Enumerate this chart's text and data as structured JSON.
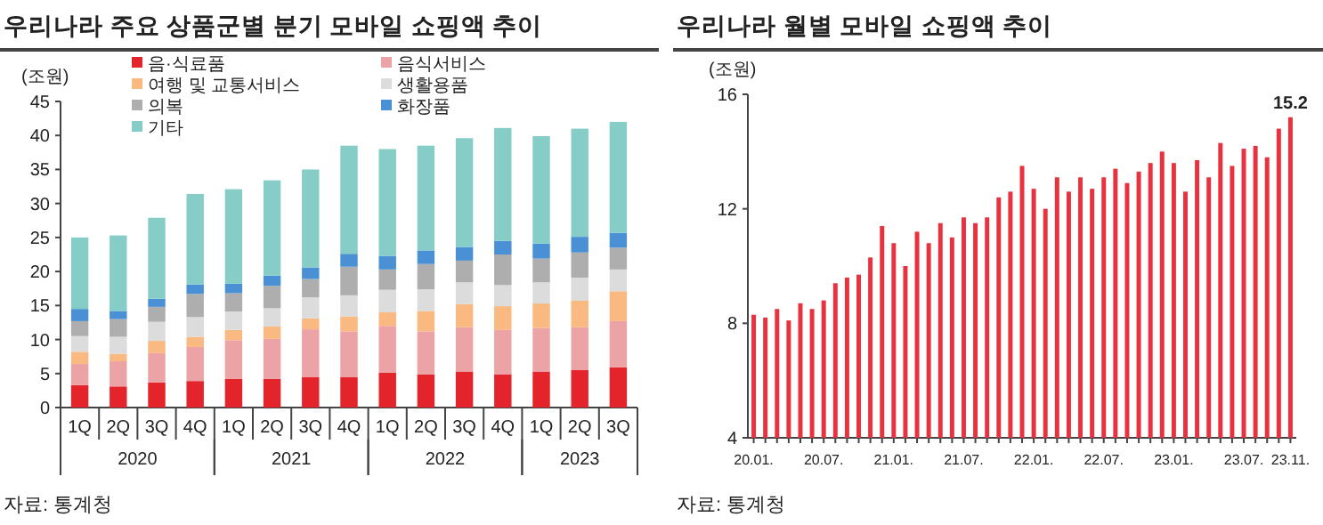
{
  "chart_data": [
    {
      "type": "bar",
      "stacked": true,
      "title": "우리나라 주요 상품군별 분기 모바일 쇼핑액 추이",
      "ylabel": "(조원)",
      "categories": [
        "1Q",
        "2Q",
        "3Q",
        "4Q",
        "1Q",
        "2Q",
        "3Q",
        "4Q",
        "1Q",
        "2Q",
        "3Q",
        "4Q",
        "1Q",
        "2Q",
        "3Q"
      ],
      "series": [
        {
          "name": "음·식료품",
          "color": "#e3242b",
          "values": [
            3.3,
            3.1,
            3.7,
            3.9,
            4.2,
            4.2,
            4.5,
            4.5,
            5.1,
            4.9,
            5.3,
            4.9,
            5.3,
            5.5,
            5.9
          ]
        },
        {
          "name": "음식서비스",
          "color": "#eba3a6",
          "values": [
            3.1,
            3.7,
            4.3,
            5.0,
            5.7,
            5.9,
            7.0,
            6.7,
            6.9,
            6.3,
            6.5,
            6.5,
            6.4,
            6.3,
            6.8
          ]
        },
        {
          "name": "여행 및 교통서비스",
          "color": "#f9b981",
          "values": [
            1.8,
            1.1,
            1.8,
            1.5,
            1.5,
            1.8,
            1.6,
            2.2,
            2.0,
            3.0,
            3.4,
            3.5,
            3.6,
            3.9,
            4.4
          ]
        },
        {
          "name": "생활용품",
          "color": "#dcdcdc",
          "values": [
            2.3,
            2.5,
            2.8,
            2.9,
            2.7,
            2.7,
            3.1,
            3.1,
            3.3,
            3.2,
            3.2,
            3.1,
            3.1,
            3.4,
            3.2
          ]
        },
        {
          "name": "의복",
          "color": "#aeaeae",
          "values": [
            2.2,
            2.6,
            2.2,
            3.4,
            2.7,
            3.3,
            2.7,
            4.2,
            3.0,
            3.7,
            3.2,
            4.5,
            3.5,
            3.7,
            3.2
          ]
        },
        {
          "name": "화장품",
          "color": "#4a90d4",
          "values": [
            1.8,
            1.2,
            1.2,
            1.4,
            1.4,
            1.5,
            1.7,
            1.9,
            2.0,
            2.0,
            2.0,
            2.0,
            2.2,
            2.3,
            2.2
          ]
        },
        {
          "name": "기타",
          "color": "#86cdc8",
          "values": [
            10.5,
            11.1,
            11.9,
            13.3,
            13.9,
            14.0,
            14.4,
            15.9,
            15.7,
            15.4,
            16.0,
            16.6,
            15.8,
            15.9,
            16.3
          ]
        }
      ],
      "ylim": [
        0,
        45
      ],
      "yticks": [
        0,
        5,
        10,
        15,
        20,
        25,
        30,
        35,
        40,
        45
      ],
      "legend": "top left",
      "grid": false,
      "annotations": [
        {
          "text": "2020"
        },
        {
          "text": "2021"
        },
        {
          "text": "2022"
        },
        {
          "text": "2023"
        },
        "자료: 통계청"
      ]
    },
    {
      "type": "bar",
      "title": "우리나라 월별 모바일 쇼핑액 추이",
      "ylabel": "(조원)",
      "color": "#e8323f",
      "categories": [
        "20.01.",
        null,
        null,
        null,
        null,
        null,
        "20.07.",
        null,
        null,
        null,
        null,
        null,
        "21.01.",
        null,
        null,
        null,
        null,
        null,
        "21.07.",
        null,
        null,
        null,
        null,
        null,
        "22.01.",
        null,
        null,
        null,
        null,
        null,
        "22.07.",
        null,
        null,
        null,
        null,
        null,
        "23.01.",
        null,
        null,
        null,
        null,
        null,
        "23.07.",
        null,
        null,
        null,
        "23.11."
      ],
      "values": [
        8.3,
        8.2,
        8.5,
        8.1,
        8.7,
        8.5,
        8.8,
        9.4,
        9.6,
        9.7,
        10.3,
        11.4,
        10.8,
        10.0,
        11.2,
        10.8,
        11.5,
        11.0,
        11.7,
        11.5,
        11.7,
        12.4,
        12.6,
        13.5,
        12.7,
        12.0,
        13.1,
        12.6,
        13.1,
        12.7,
        13.1,
        13.4,
        12.9,
        13.3,
        13.6,
        14.0,
        13.6,
        12.6,
        13.7,
        13.1,
        14.3,
        13.5,
        14.1,
        14.2,
        13.8,
        14.8,
        15.2
      ],
      "value_labels": [
        null,
        null,
        null,
        null,
        null,
        null,
        null,
        null,
        null,
        null,
        null,
        null,
        null,
        null,
        null,
        null,
        null,
        null,
        null,
        null,
        null,
        null,
        null,
        null,
        null,
        null,
        null,
        null,
        null,
        null,
        null,
        null,
        null,
        null,
        null,
        null,
        null,
        null,
        null,
        null,
        null,
        null,
        null,
        null,
        null,
        null,
        "15.2"
      ],
      "ylim": [
        4,
        16
      ],
      "yticks": [
        4,
        8,
        12,
        16
      ],
      "grid": false,
      "annotations": [
        "자료: 통계청"
      ]
    }
  ]
}
